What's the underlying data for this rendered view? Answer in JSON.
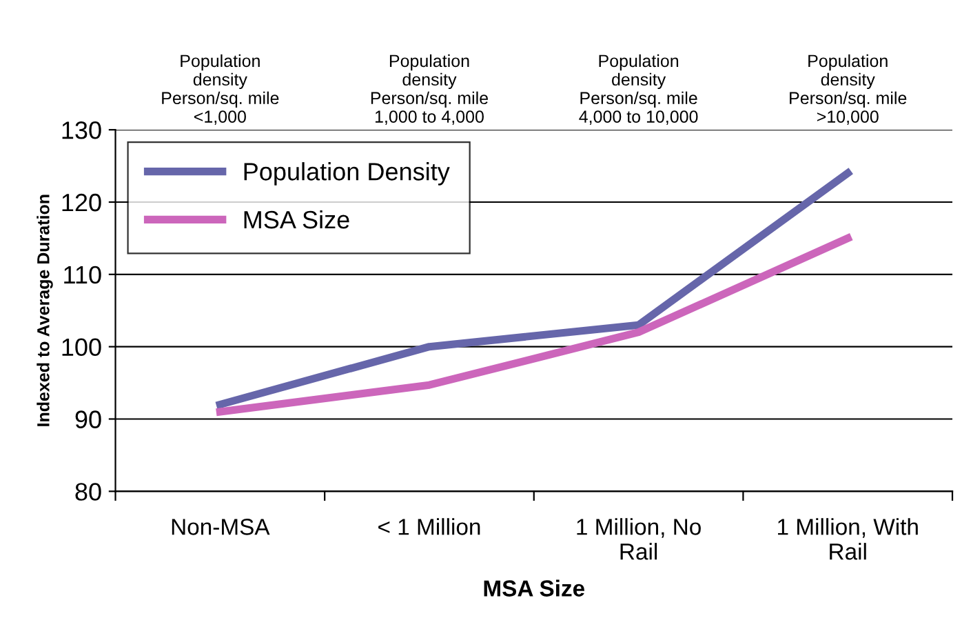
{
  "chart_data": {
    "type": "line",
    "xlabel": "MSA Size",
    "ylabel": "Indexed to Average Duration",
    "categories": [
      "Non-MSA",
      "< 1 Million",
      "1 Million, No\nRail",
      "1 Million, With\nRail"
    ],
    "series": [
      {
        "name": "Population Density",
        "color": "#6666aa",
        "values": [
          92,
          100,
          103,
          124
        ]
      },
      {
        "name": "MSA Size",
        "color": "#cc66bb",
        "values": [
          91,
          94.7,
          102,
          115
        ]
      }
    ],
    "ylim": [
      80,
      130
    ],
    "yticks": [
      80,
      90,
      100,
      110,
      120,
      130
    ],
    "grid": "y",
    "legend": "top left",
    "marker": "none",
    "line_style": "solid",
    "annotations": [
      "Population\ndensity\nPerson/sq. mile\n<1,000",
      "Population\ndensity\nPerson/sq. mile\n1,000 to 4,000",
      "Population\ndensity\nPerson/sq. mile\n4,000 to 10,000",
      "Population\ndensity\nPerson/sq. mile\n>10,000"
    ]
  }
}
